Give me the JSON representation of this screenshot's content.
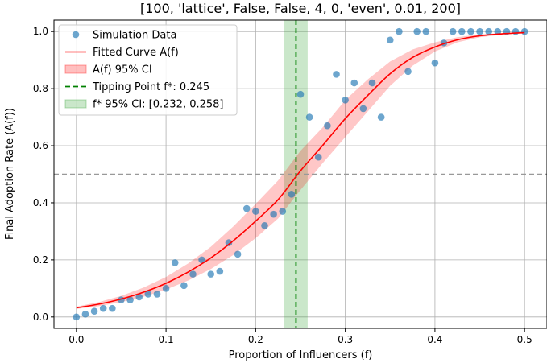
{
  "chart_data": {
    "type": "scatter",
    "title": "[100, 'lattice', False, False, 4, 0, 'even', 0.01, 200]",
    "xlabel": "Proportion of Influencers (f)",
    "ylabel": "Final Adoption Rate (A(f))",
    "xlim": [
      -0.025,
      0.525
    ],
    "ylim": [
      -0.04,
      1.04
    ],
    "xticks": [
      0.0,
      0.1,
      0.2,
      0.3,
      0.4,
      0.5
    ],
    "xtick_labels": [
      "0.0",
      "0.1",
      "0.2",
      "0.3",
      "0.4",
      "0.5"
    ],
    "yticks": [
      0.0,
      0.2,
      0.4,
      0.6,
      0.8,
      1.0
    ],
    "ytick_labels": [
      "0.0",
      "0.2",
      "0.4",
      "0.6",
      "0.8",
      "1.0"
    ],
    "grid": true,
    "legend_position": "top-left",
    "legend": [
      {
        "label": "Simulation Data",
        "kind": "marker",
        "color": "#1f77b4"
      },
      {
        "label": "Fitted Curve A(f)",
        "kind": "line",
        "color": "#ff0000"
      },
      {
        "label": "A(f) 95% CI",
        "kind": "patch",
        "color": "#ff0000"
      },
      {
        "label": "Tipping Point f*: 0.245",
        "kind": "dashed",
        "color": "#008000"
      },
      {
        "label": "f* 95% CI: [0.232, 0.258]",
        "kind": "patch",
        "color": "#2ca02c"
      }
    ],
    "scatter": {
      "name": "Simulation Data",
      "color": "#1f77b4",
      "points": [
        [
          0.0,
          0.0
        ],
        [
          0.01,
          0.01
        ],
        [
          0.02,
          0.02
        ],
        [
          0.03,
          0.03
        ],
        [
          0.04,
          0.03
        ],
        [
          0.05,
          0.06
        ],
        [
          0.06,
          0.06
        ],
        [
          0.07,
          0.07
        ],
        [
          0.08,
          0.08
        ],
        [
          0.09,
          0.08
        ],
        [
          0.1,
          0.1
        ],
        [
          0.11,
          0.19
        ],
        [
          0.12,
          0.11
        ],
        [
          0.13,
          0.15
        ],
        [
          0.14,
          0.2
        ],
        [
          0.15,
          0.15
        ],
        [
          0.16,
          0.16
        ],
        [
          0.17,
          0.26
        ],
        [
          0.18,
          0.22
        ],
        [
          0.19,
          0.38
        ],
        [
          0.2,
          0.37
        ],
        [
          0.21,
          0.32
        ],
        [
          0.22,
          0.36
        ],
        [
          0.23,
          0.37
        ],
        [
          0.24,
          0.43
        ],
        [
          0.25,
          0.78
        ],
        [
          0.26,
          0.7
        ],
        [
          0.27,
          0.56
        ],
        [
          0.28,
          0.67
        ],
        [
          0.29,
          0.85
        ],
        [
          0.3,
          0.76
        ],
        [
          0.31,
          0.82
        ],
        [
          0.32,
          0.73
        ],
        [
          0.33,
          0.82
        ],
        [
          0.34,
          0.7
        ],
        [
          0.35,
          0.97
        ],
        [
          0.36,
          1.0
        ],
        [
          0.37,
          0.86
        ],
        [
          0.38,
          1.0
        ],
        [
          0.39,
          1.0
        ],
        [
          0.4,
          0.89
        ],
        [
          0.41,
          0.96
        ],
        [
          0.42,
          1.0
        ],
        [
          0.43,
          1.0
        ],
        [
          0.44,
          1.0
        ],
        [
          0.45,
          1.0
        ],
        [
          0.46,
          1.0
        ],
        [
          0.47,
          1.0
        ],
        [
          0.48,
          1.0
        ],
        [
          0.49,
          1.0
        ],
        [
          0.5,
          1.0
        ]
      ]
    },
    "fitted_curve": {
      "name": "Fitted Curve A(f)",
      "color": "#ff0000",
      "x": [
        0.0,
        0.025,
        0.05,
        0.075,
        0.1,
        0.125,
        0.15,
        0.175,
        0.2,
        0.225,
        0.25,
        0.275,
        0.3,
        0.325,
        0.35,
        0.375,
        0.4,
        0.425,
        0.45,
        0.475,
        0.5
      ],
      "y": [
        0.032,
        0.045,
        0.063,
        0.087,
        0.118,
        0.158,
        0.207,
        0.267,
        0.336,
        0.411,
        0.512,
        0.602,
        0.695,
        0.776,
        0.852,
        0.909,
        0.946,
        0.971,
        0.985,
        0.992,
        0.996
      ]
    },
    "curve_ci": {
      "name": "A(f) 95% CI",
      "color": "#ff0000",
      "x": [
        0.0,
        0.025,
        0.05,
        0.075,
        0.1,
        0.125,
        0.15,
        0.175,
        0.2,
        0.225,
        0.25,
        0.275,
        0.3,
        0.325,
        0.35,
        0.375,
        0.4,
        0.425,
        0.45,
        0.475,
        0.5
      ],
      "lower": [
        0.028,
        0.038,
        0.052,
        0.071,
        0.096,
        0.128,
        0.168,
        0.217,
        0.276,
        0.345,
        0.445,
        0.54,
        0.63,
        0.72,
        0.81,
        0.88,
        0.93,
        0.962,
        0.98,
        0.989,
        0.994
      ],
      "upper": [
        0.036,
        0.052,
        0.074,
        0.103,
        0.14,
        0.188,
        0.246,
        0.317,
        0.396,
        0.478,
        0.582,
        0.665,
        0.76,
        0.832,
        0.895,
        0.937,
        0.962,
        0.98,
        0.99,
        0.995,
        0.998
      ]
    },
    "reference_lines": [
      {
        "orientation": "horizontal",
        "value": 0.5,
        "color": "#999999",
        "style": "dashed"
      },
      {
        "orientation": "vertical",
        "value": 0.245,
        "color": "#008000",
        "style": "dashed",
        "name": "Tipping Point f*: 0.245"
      }
    ],
    "vertical_band": {
      "name": "f* 95% CI: [0.232, 0.258]",
      "x0": 0.232,
      "x1": 0.258,
      "color": "#2ca02c"
    }
  }
}
